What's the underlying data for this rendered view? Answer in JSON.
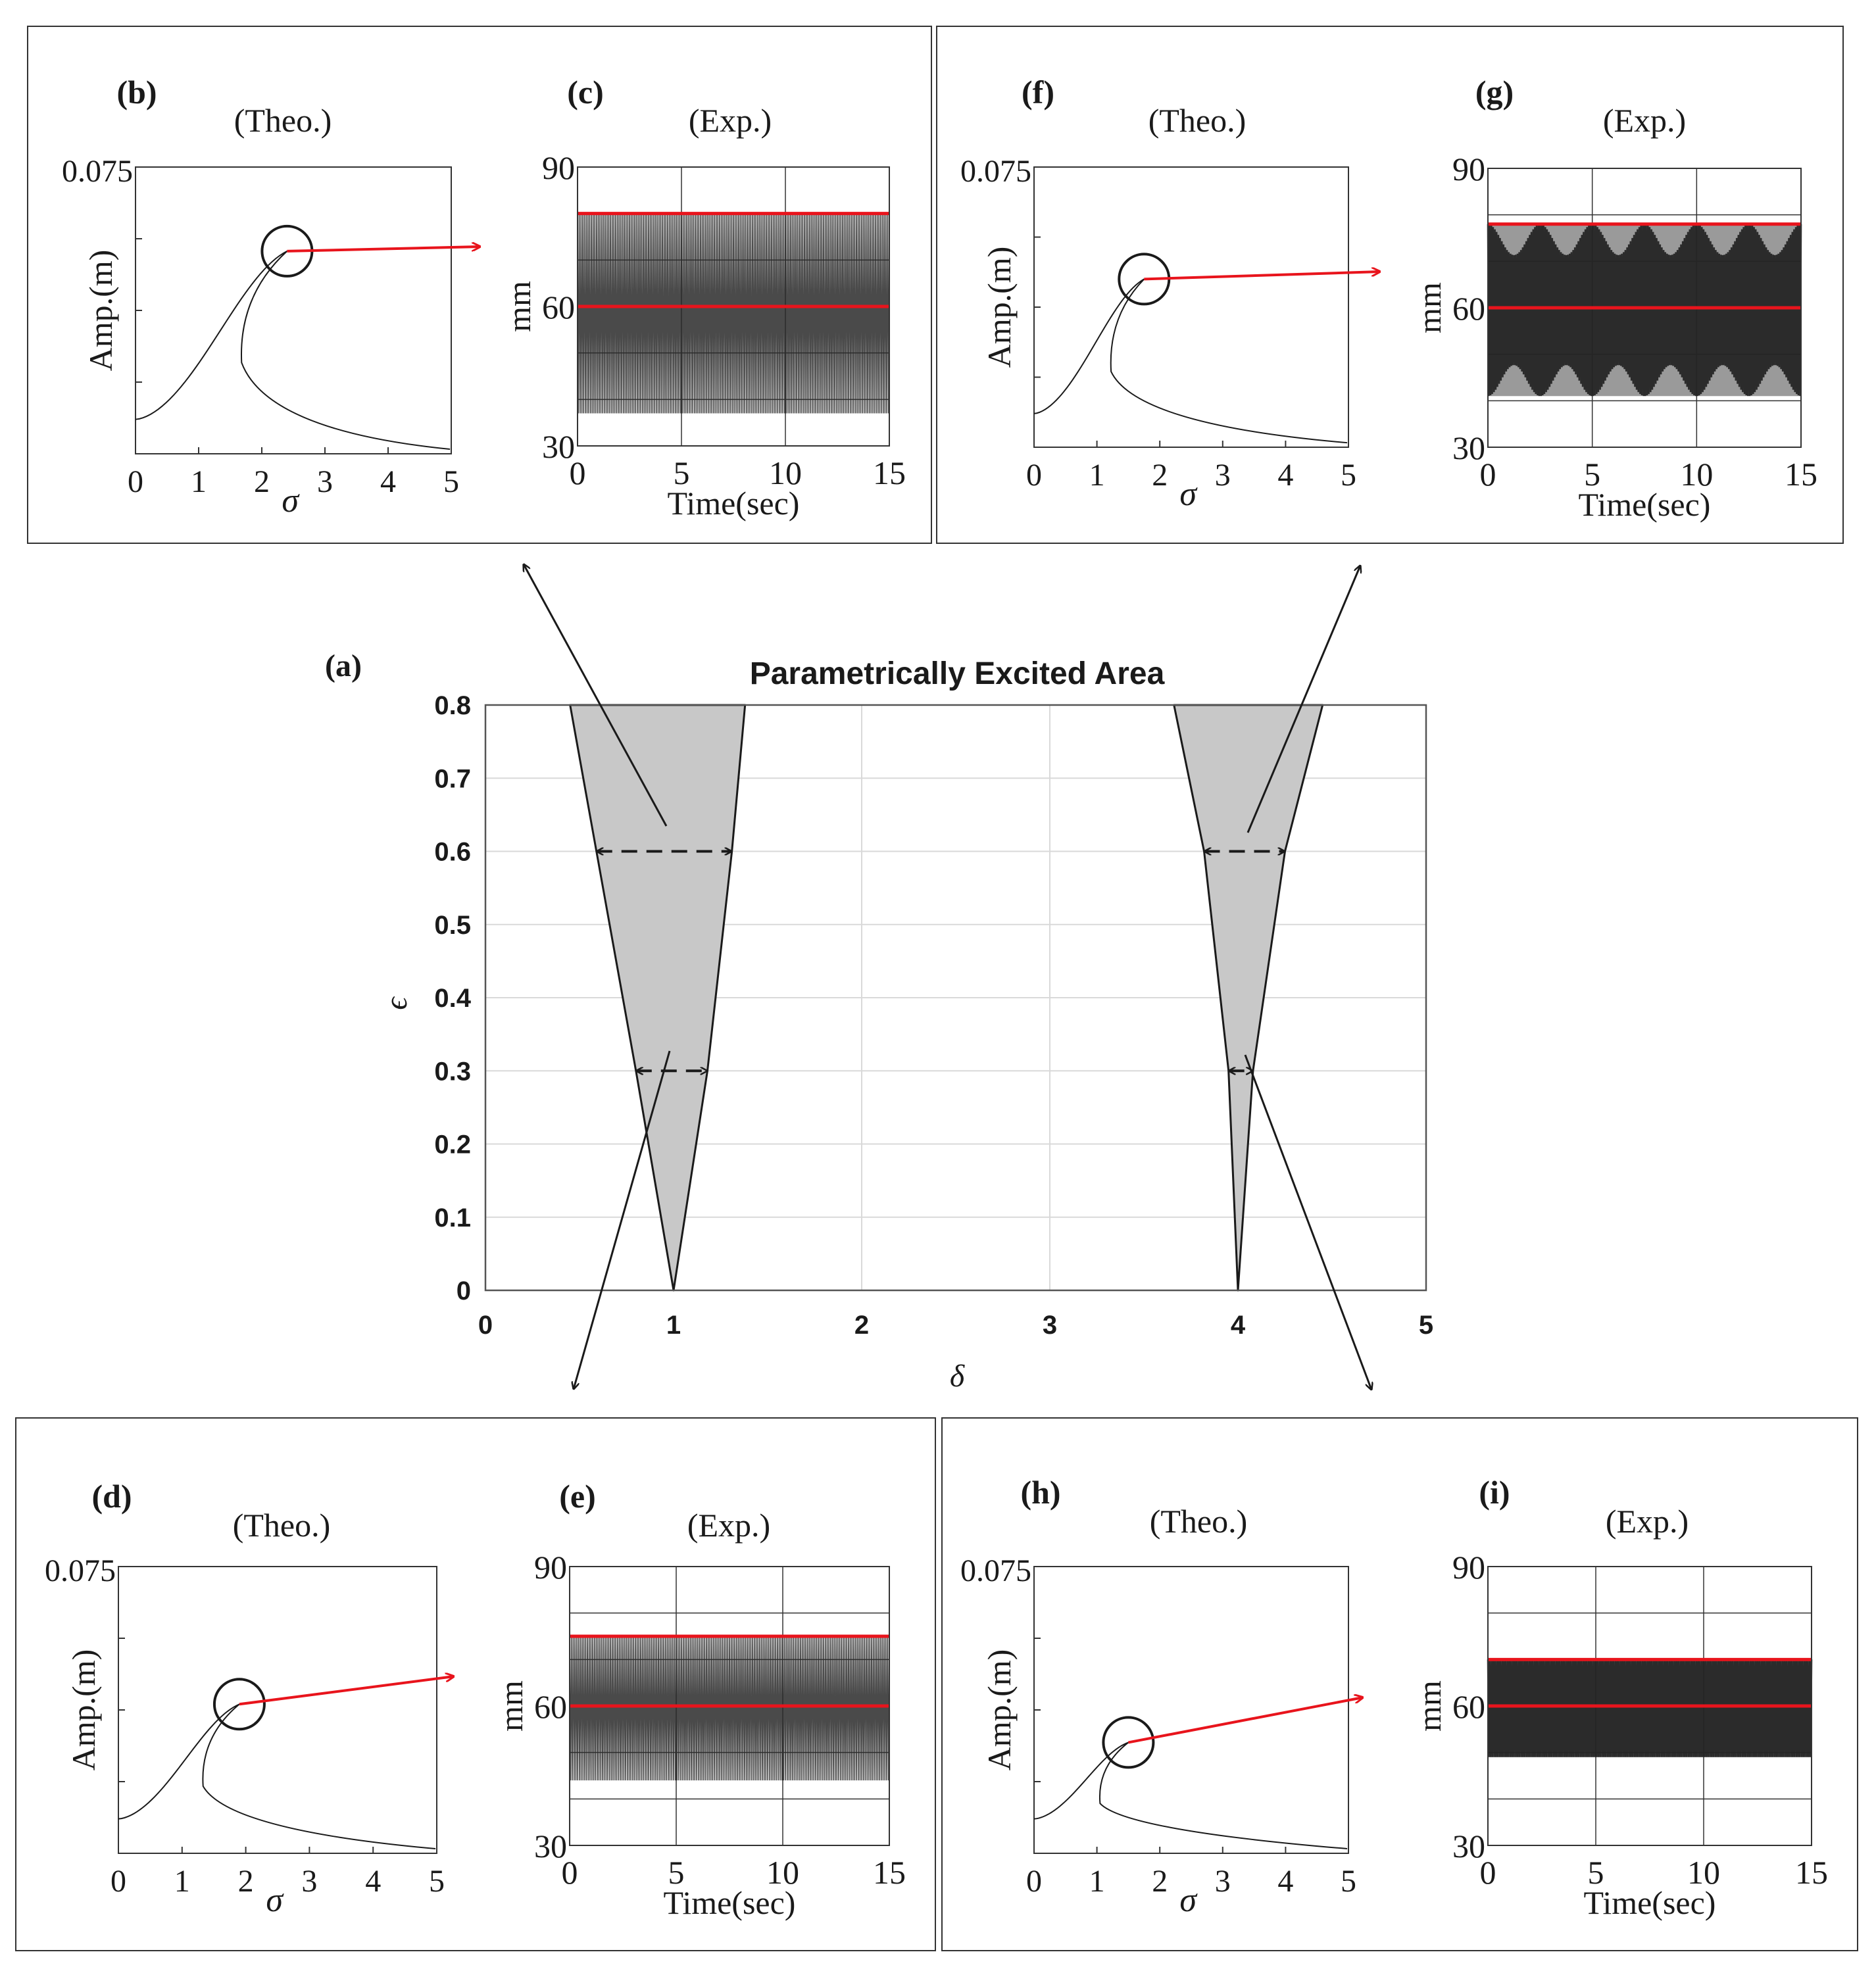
{
  "colors": {
    "fill": "#c8c8c8",
    "red": "#e8141c",
    "ink": "#1a1a1a",
    "grid": "#d9d9d9"
  },
  "chart_data": [
    {
      "id": "a",
      "type": "area",
      "panel_label": "(a)",
      "title": "Parametrically Excited Area",
      "xlabel": "δ",
      "ylabel": "ϵ",
      "xlim": [
        0,
        5
      ],
      "ylim": [
        0,
        0.8
      ],
      "xticks": [
        "0",
        "1",
        "2",
        "3",
        "4",
        "5"
      ],
      "yticks": [
        "0",
        "0.1",
        "0.2",
        "0.3",
        "0.4",
        "0.5",
        "0.6",
        "0.7",
        "0.8"
      ],
      "grid": true,
      "regions": [
        {
          "name": "first instability tongue",
          "tip": [
            1,
            0
          ],
          "top": [
            0.45,
            1.38
          ],
          "at_0.6": [
            0.59,
            1.31
          ],
          "at_0.3": [
            0.8,
            1.18
          ]
        },
        {
          "name": "second instability tongue",
          "tip": [
            4,
            0
          ],
          "top": [
            3.66,
            4.45
          ],
          "at_0.6": [
            3.82,
            4.25
          ],
          "at_0.3": [
            3.95,
            4.08
          ]
        }
      ],
      "annotations": [
        {
          "type": "double-arrow",
          "y": 0.6,
          "x": [
            0.59,
            1.31
          ]
        },
        {
          "type": "double-arrow",
          "y": 0.3,
          "x": [
            0.8,
            1.18
          ]
        },
        {
          "type": "double-arrow",
          "y": 0.6,
          "x": [
            3.82,
            4.25
          ]
        },
        {
          "type": "double-arrow",
          "y": 0.3,
          "x": [
            3.95,
            4.08
          ]
        }
      ]
    },
    {
      "id": "b",
      "type": "line",
      "panel_label": "(b)",
      "subtitle": "(Theo.)",
      "xlabel": "σ",
      "ylabel": "Amp.(m)",
      "xlim": [
        0,
        5
      ],
      "ylim": [
        0,
        0.075
      ],
      "xticks": [
        "0",
        "1",
        "2",
        "3",
        "4",
        "5"
      ],
      "ytick_top": "0.075",
      "peak": [
        2.4,
        0.053
      ],
      "circled_point": [
        2.4,
        0.053
      ]
    },
    {
      "id": "c",
      "type": "line",
      "panel_label": "(c)",
      "subtitle": "(Exp.)",
      "xlabel": "Time(sec)",
      "ylabel": "mm",
      "xlim": [
        0,
        15
      ],
      "ylim": [
        30,
        90
      ],
      "xticks": [
        "0",
        "5",
        "10",
        "15"
      ],
      "yticks": [
        "30",
        "60",
        "90"
      ],
      "signal_range": [
        37,
        80
      ],
      "red_lines": [
        80,
        60
      ],
      "texture": "uniform"
    },
    {
      "id": "d",
      "type": "line",
      "panel_label": "(d)",
      "subtitle": "(Theo.)",
      "xlabel": "σ",
      "ylabel": "Amp.(m)",
      "xlim": [
        0,
        5
      ],
      "ylim": [
        0,
        0.075
      ],
      "xticks": [
        "0",
        "1",
        "2",
        "3",
        "4",
        "5"
      ],
      "ytick_top": "0.075",
      "peak": [
        1.9,
        0.039
      ],
      "circled_point": [
        1.9,
        0.039
      ]
    },
    {
      "id": "e",
      "type": "line",
      "panel_label": "(e)",
      "subtitle": "(Exp.)",
      "xlabel": "Time(sec)",
      "ylabel": "mm",
      "xlim": [
        0,
        15
      ],
      "ylim": [
        30,
        90
      ],
      "xticks": [
        "0",
        "5",
        "10",
        "15"
      ],
      "yticks": [
        "30",
        "60",
        "90"
      ],
      "signal_range": [
        44,
        75
      ],
      "red_lines": [
        75,
        60
      ],
      "texture": "uniform"
    },
    {
      "id": "f",
      "type": "line",
      "panel_label": "(f)",
      "subtitle": "(Theo.)",
      "xlabel": "σ",
      "ylabel": "Amp.(m)",
      "xlim": [
        0,
        5
      ],
      "ylim": [
        0,
        0.075
      ],
      "xticks": [
        "0",
        "1",
        "2",
        "3",
        "4",
        "5"
      ],
      "ytick_top": "0.075",
      "peak": [
        1.75,
        0.045
      ],
      "circled_point": [
        1.75,
        0.045
      ]
    },
    {
      "id": "g",
      "type": "line",
      "panel_label": "(g)",
      "subtitle": "(Exp.)",
      "xlabel": "Time(sec)",
      "ylabel": "mm",
      "xlim": [
        0,
        15
      ],
      "ylim": [
        30,
        90
      ],
      "xticks": [
        "0",
        "5",
        "10",
        "15"
      ],
      "yticks": [
        "30",
        "60",
        "90"
      ],
      "signal_range": [
        41,
        78
      ],
      "red_lines": [
        78,
        60
      ],
      "texture": "beating"
    },
    {
      "id": "h",
      "type": "line",
      "panel_label": "(h)",
      "subtitle": "(Theo.)",
      "xlabel": "σ",
      "ylabel": "Amp.(m)",
      "xlim": [
        0,
        5
      ],
      "ylim": [
        0,
        0.075
      ],
      "xticks": [
        "0",
        "1",
        "2",
        "3",
        "4",
        "5"
      ],
      "ytick_top": "0.075",
      "peak": [
        1.5,
        0.029
      ],
      "circled_point": [
        1.5,
        0.029
      ]
    },
    {
      "id": "i",
      "type": "line",
      "panel_label": "(i)",
      "subtitle": "(Exp.)",
      "xlabel": "Time(sec)",
      "ylabel": "mm",
      "xlim": [
        0,
        15
      ],
      "ylim": [
        30,
        90
      ],
      "xticks": [
        "0",
        "5",
        "10",
        "15"
      ],
      "yticks": [
        "30",
        "60",
        "90"
      ],
      "signal_range": [
        49,
        70
      ],
      "red_lines": [
        70,
        60
      ],
      "texture": "dense"
    }
  ]
}
